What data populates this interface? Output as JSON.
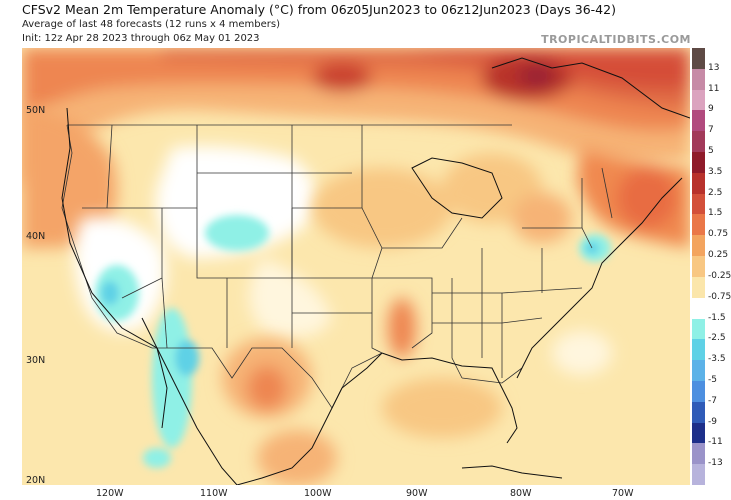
{
  "header": {
    "title": "CFSv2 Mean 2m Temperature Anomaly (°C) from 06z05Jun2023 to 06z12Jun2023 (Days 36-42)",
    "subtitle1": "Average of last 48 forecasts (12 runs x 4 members)",
    "subtitle2": "Init: 12z Apr 28 2023 through 06z May 01 2023",
    "brand": "TROPICALTIDBITS.COM"
  },
  "map": {
    "lat_labels": [
      "50N",
      "40N",
      "30N",
      "20N"
    ],
    "lon_labels": [
      "120W",
      "110W",
      "100W",
      "90W",
      "80W",
      "70W"
    ]
  },
  "colorbar": {
    "labels": [
      "13",
      "11",
      "9",
      "7",
      "5",
      "3.5",
      "2.5",
      "1.5",
      "0.75",
      "0.25",
      "-0.25",
      "-0.75",
      "-1.5",
      "-2.5",
      "-3.5",
      "-5",
      "-7",
      "-9",
      "-11",
      "-13"
    ],
    "colors": [
      "#5e4a45",
      "#c68aa6",
      "#dba3bf",
      "#b14a7e",
      "#a23a5a",
      "#8f1b2a",
      "#b8322c",
      "#d3503a",
      "#ea7748",
      "#f3a45f",
      "#f8c783",
      "#fbe6ab",
      "#ffffff",
      "#8ff0e6",
      "#5fd1e6",
      "#5cb2e8",
      "#4d8fe0",
      "#2f5bb8",
      "#1d2f8a",
      "#9a93c9",
      "#b7b3dc"
    ]
  }
}
